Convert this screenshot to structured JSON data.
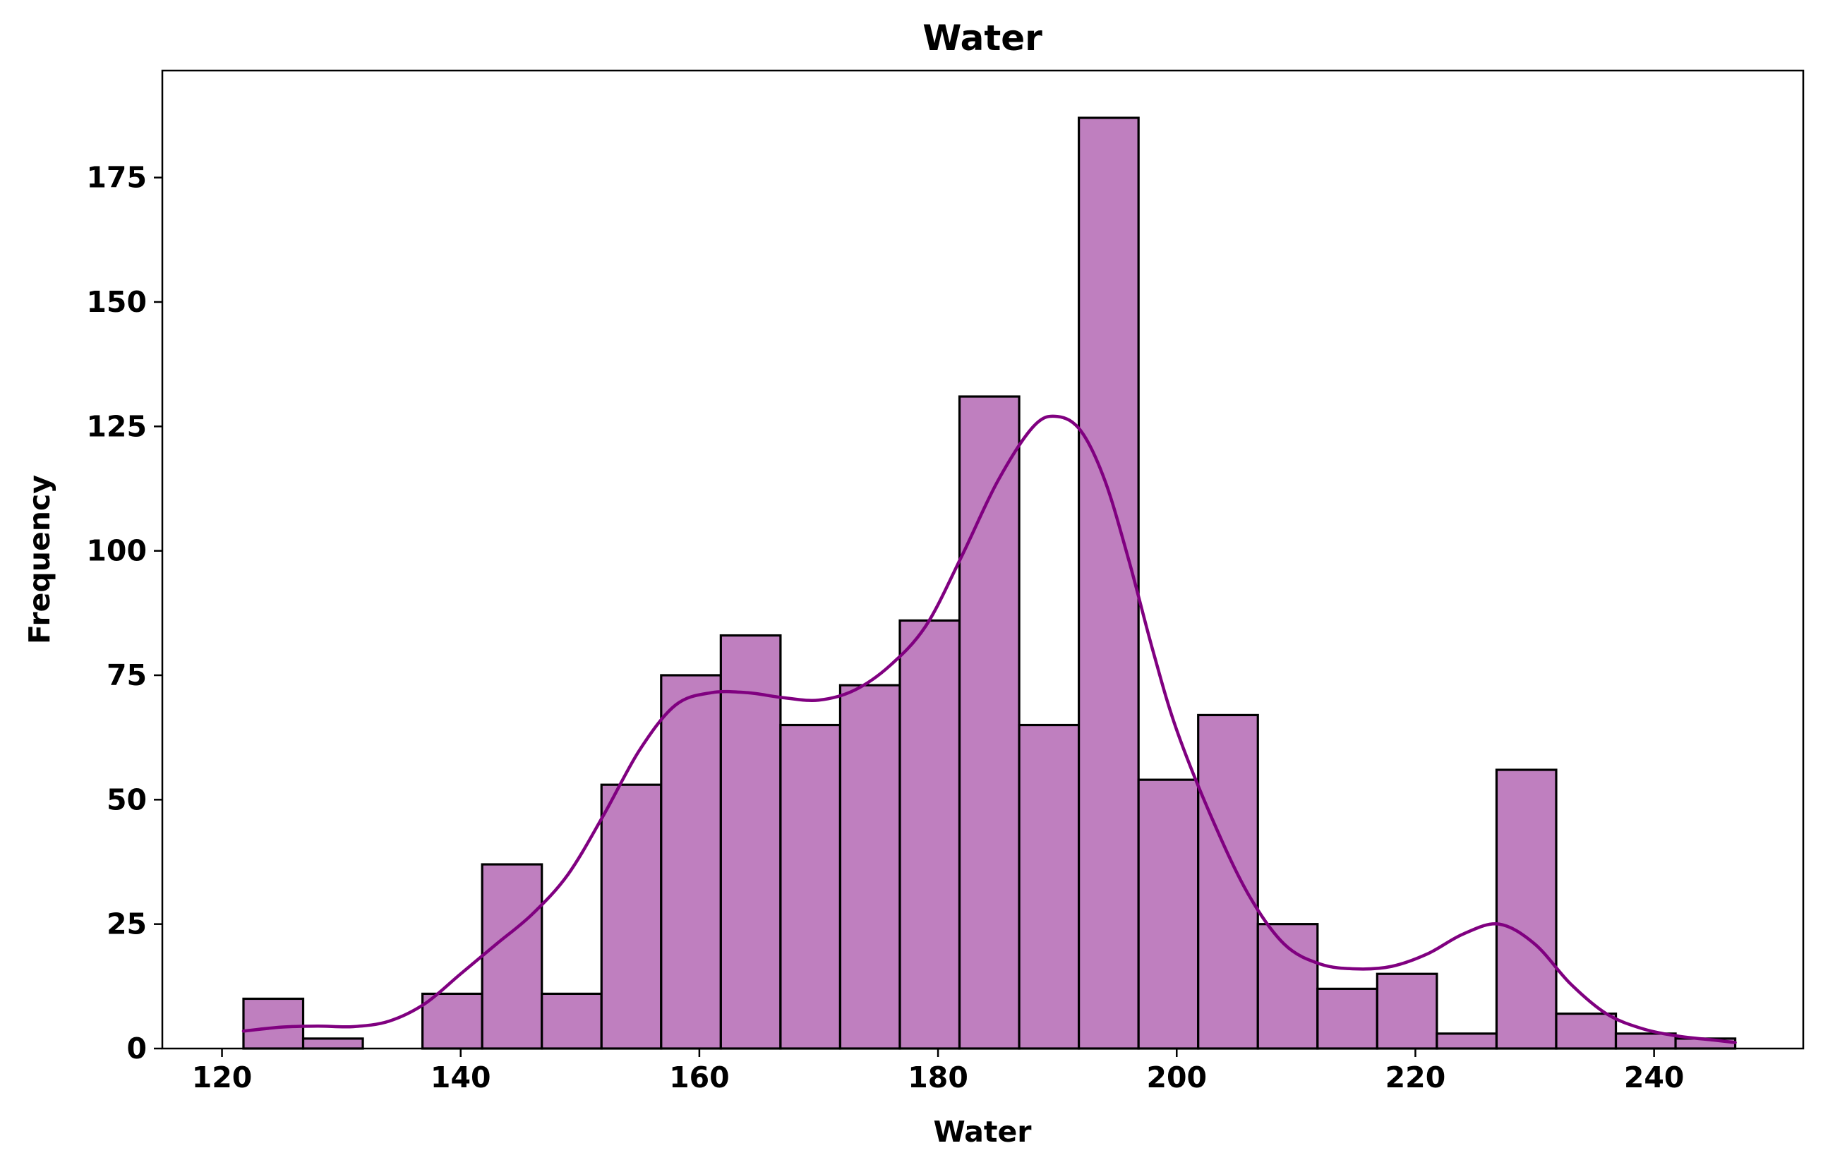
{
  "chart_data": {
    "type": "bar",
    "title": "Water",
    "xlabel": "Water",
    "ylabel": "Frequency",
    "xlim": [
      115,
      252.5
    ],
    "ylim": [
      0,
      196.5
    ],
    "xticks": [
      120,
      140,
      160,
      180,
      200,
      220,
      240
    ],
    "yticks": [
      0,
      25,
      50,
      75,
      100,
      125,
      150,
      175
    ],
    "grid": false,
    "legend": "none",
    "bin_start": 121.8,
    "bin_width": 5.0,
    "bins": [
      {
        "start": 121.8,
        "end": 126.8,
        "count": 10
      },
      {
        "start": 126.8,
        "end": 131.8,
        "count": 2
      },
      {
        "start": 131.8,
        "end": 136.8,
        "count": 0
      },
      {
        "start": 136.8,
        "end": 141.8,
        "count": 11
      },
      {
        "start": 141.8,
        "end": 146.8,
        "count": 37
      },
      {
        "start": 146.8,
        "end": 151.8,
        "count": 11
      },
      {
        "start": 151.8,
        "end": 156.8,
        "count": 53
      },
      {
        "start": 156.8,
        "end": 161.8,
        "count": 75
      },
      {
        "start": 161.8,
        "end": 166.8,
        "count": 83
      },
      {
        "start": 166.8,
        "end": 171.8,
        "count": 65
      },
      {
        "start": 171.8,
        "end": 176.8,
        "count": 73
      },
      {
        "start": 176.8,
        "end": 181.8,
        "count": 86
      },
      {
        "start": 181.8,
        "end": 186.8,
        "count": 131
      },
      {
        "start": 186.8,
        "end": 191.8,
        "count": 65
      },
      {
        "start": 191.8,
        "end": 196.8,
        "count": 187
      },
      {
        "start": 196.8,
        "end": 201.8,
        "count": 54
      },
      {
        "start": 201.8,
        "end": 206.8,
        "count": 67
      },
      {
        "start": 206.8,
        "end": 211.8,
        "count": 25
      },
      {
        "start": 211.8,
        "end": 216.8,
        "count": 12
      },
      {
        "start": 216.8,
        "end": 221.8,
        "count": 15
      },
      {
        "start": 221.8,
        "end": 226.8,
        "count": 3
      },
      {
        "start": 226.8,
        "end": 231.8,
        "count": 56
      },
      {
        "start": 231.8,
        "end": 236.8,
        "count": 7
      },
      {
        "start": 236.8,
        "end": 241.8,
        "count": 3
      },
      {
        "start": 241.8,
        "end": 246.8,
        "count": 2
      }
    ],
    "kde": {
      "x": [
        121.8,
        125,
        128,
        131,
        134,
        137,
        140,
        143,
        146,
        149,
        152,
        155,
        158,
        161,
        164,
        167,
        170,
        173,
        176,
        179,
        182,
        185,
        188,
        190,
        192,
        194,
        196,
        198,
        200,
        203,
        206,
        209,
        212,
        215,
        218,
        221,
        224,
        227,
        230,
        233,
        236,
        239,
        242,
        245,
        246.8
      ],
      "y": [
        3.5,
        4.3,
        4.5,
        4.4,
        5.5,
        9,
        15,
        21,
        27,
        35,
        47,
        60,
        69,
        71.5,
        71.5,
        70.5,
        70,
        72,
        77,
        85,
        99,
        114,
        125,
        127,
        124,
        114,
        98,
        80,
        64,
        46,
        31,
        21,
        17,
        16,
        16.5,
        19,
        23,
        25,
        21,
        13,
        7,
        4,
        2.5,
        1.7,
        1.2
      ]
    },
    "colors": {
      "bar_fill": "#bf7fbf",
      "bar_edge": "#000000",
      "kde_line": "#800080"
    }
  }
}
